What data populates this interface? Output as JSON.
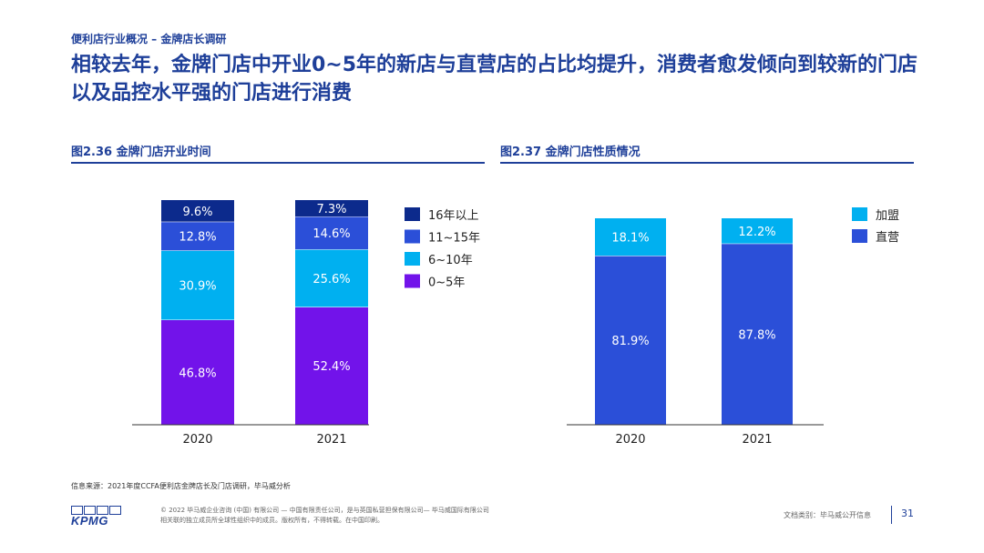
{
  "breadcrumb": "便利店行业概况 – 金牌店长调研",
  "headline": "相较去年，金牌门店中开业0~5年的新店与直营店的占比均提升，消费者愈发倾向到较新的门店以及品控水平强的门店进行消费",
  "source": "信息来源：2021年度CCFA便利店金牌店长及门店调研，毕马威分析",
  "footer": {
    "logo": "KPMG",
    "copyright_line1": "© 2022 毕马威企业咨询 (中国) 有限公司 — 中国有限责任公司，是与英国私营担保有限公司— 毕马威国际有限公司",
    "copyright_line2": "相关联的独立成员所全球性组织中的成员。版权所有，不得转载。在中国印刷。",
    "doc_type": "文档类别：毕马威公开信息",
    "page_number": "31"
  },
  "colors": {
    "navy": "#0c2a8c",
    "blue": "#2b4fd8",
    "cyan": "#00b0f0",
    "purple": "#7213ea",
    "title_blue": "#1e3f99"
  },
  "chart_data": [
    {
      "type": "bar",
      "stacked": true,
      "normalized": true,
      "title": "图2.36 金牌门店开业时间",
      "categories": [
        "2020",
        "2021"
      ],
      "series": [
        {
          "name": "0~5年",
          "values": [
            46.8,
            52.4
          ],
          "labels": [
            "46.8%",
            "52.4%"
          ],
          "color": "#7213ea"
        },
        {
          "name": "6~10年",
          "values": [
            30.9,
            25.6
          ],
          "labels": [
            "30.9%",
            "25.6%"
          ],
          "color": "#00b0f0"
        },
        {
          "name": "11~15年",
          "values": [
            12.8,
            14.6
          ],
          "labels": [
            "12.8%",
            "14.6%"
          ],
          "color": "#2b4fd8"
        },
        {
          "name": "16年以上",
          "values": [
            9.6,
            7.3
          ],
          "labels": [
            "9.6%",
            "7.3%"
          ],
          "color": "#0c2a8c"
        }
      ],
      "legend_order": [
        "16年以上",
        "11~15年",
        "6~10年",
        "0~5年"
      ],
      "legend_position": "right",
      "ylim": [
        0,
        100
      ]
    },
    {
      "type": "bar",
      "stacked": true,
      "normalized": true,
      "title": "图2.37 金牌门店性质情况",
      "categories": [
        "2020",
        "2021"
      ],
      "series": [
        {
          "name": "直营",
          "values": [
            81.9,
            87.8
          ],
          "labels": [
            "81.9%",
            "87.8%"
          ],
          "color": "#2b4fd8"
        },
        {
          "name": "加盟",
          "values": [
            18.1,
            12.2
          ],
          "labels": [
            "18.1%",
            "12.2%"
          ],
          "color": "#00b0f0"
        }
      ],
      "legend_order": [
        "加盟",
        "直营"
      ],
      "legend_position": "right",
      "ylim": [
        0,
        100
      ]
    }
  ]
}
